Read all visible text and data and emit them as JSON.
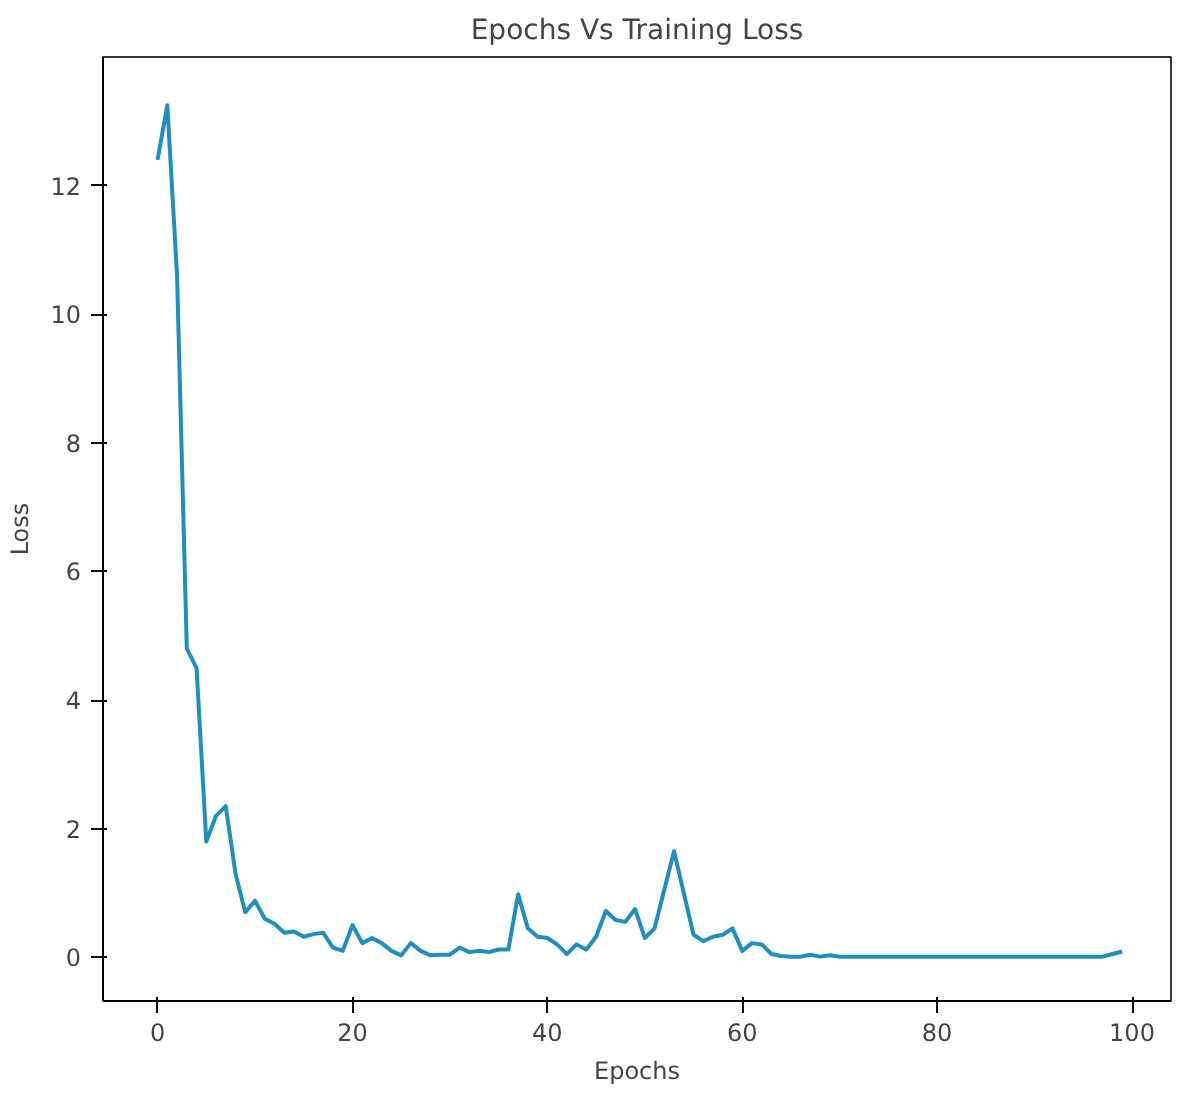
{
  "chart_data": {
    "type": "line",
    "title": "Epochs Vs Training Loss",
    "xlabel": "Epochs",
    "ylabel": "Loss",
    "x": [
      0,
      1,
      2,
      3,
      4,
      5,
      6,
      7,
      8,
      9,
      10,
      11,
      12,
      13,
      14,
      15,
      16,
      17,
      18,
      19,
      20,
      21,
      22,
      23,
      24,
      25,
      26,
      27,
      28,
      29,
      30,
      31,
      32,
      33,
      34,
      35,
      36,
      37,
      38,
      39,
      40,
      41,
      42,
      43,
      44,
      45,
      46,
      47,
      48,
      49,
      50,
      51,
      52,
      53,
      54,
      55,
      56,
      57,
      58,
      59,
      60,
      61,
      62,
      63,
      64,
      65,
      66,
      67,
      68,
      69,
      70,
      71,
      72,
      73,
      74,
      75,
      76,
      77,
      78,
      79,
      80,
      81,
      82,
      83,
      84,
      85,
      86,
      87,
      88,
      89,
      90,
      91,
      92,
      93,
      94,
      95,
      96,
      97,
      98,
      99
    ],
    "series": [
      {
        "color": "#1f8ec0",
        "values": [
          12.4,
          13.25,
          10.6,
          4.8,
          4.5,
          1.8,
          2.2,
          2.35,
          1.3,
          0.7,
          0.88,
          0.6,
          0.52,
          0.38,
          0.4,
          0.32,
          0.36,
          0.38,
          0.15,
          0.1,
          0.5,
          0.22,
          0.3,
          0.22,
          0.1,
          0.03,
          0.22,
          0.1,
          0.03,
          0.04,
          0.04,
          0.15,
          0.08,
          0.1,
          0.08,
          0.12,
          0.12,
          0.98,
          0.45,
          0.32,
          0.3,
          0.2,
          0.05,
          0.2,
          0.12,
          0.32,
          0.72,
          0.58,
          0.55,
          0.75,
          0.3,
          0.45,
          1.05,
          1.65,
          1.0,
          0.35,
          0.25,
          0.32,
          0.35,
          0.45,
          0.1,
          0.22,
          0.2,
          0.05,
          0.02,
          0.01,
          0.01,
          0.04,
          0.01,
          0.03,
          0.01,
          0.01,
          0.01,
          0.01,
          0.01,
          0.01,
          0.01,
          0.01,
          0.01,
          0.01,
          0.01,
          0.01,
          0.01,
          0.01,
          0.01,
          0.01,
          0.01,
          0.01,
          0.01,
          0.01,
          0.01,
          0.01,
          0.01,
          0.01,
          0.01,
          0.01,
          0.01,
          0.01,
          0.05,
          0.09
        ]
      }
    ],
    "xlim": [
      -5.6,
      104
    ],
    "ylim": [
      -0.68,
      14.0
    ],
    "xticks": [
      0,
      20,
      40,
      60,
      80,
      100
    ],
    "yticks": [
      0,
      2,
      4,
      6,
      8,
      10,
      12
    ],
    "grid": false,
    "marker": "none",
    "line_style": "solid"
  }
}
